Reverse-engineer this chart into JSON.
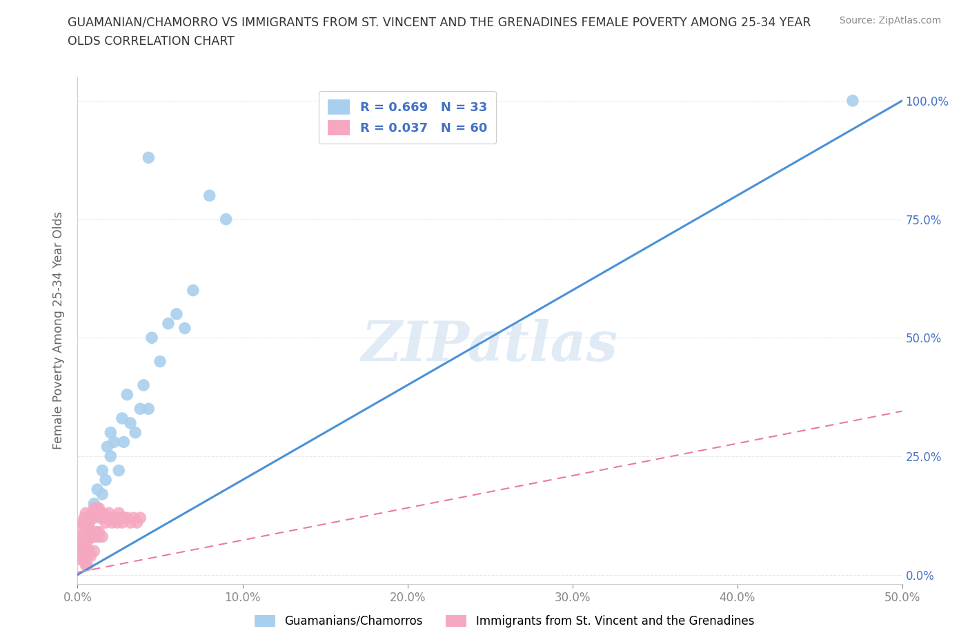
{
  "title_line1": "GUAMANIAN/CHAMORRO VS IMMIGRANTS FROM ST. VINCENT AND THE GRENADINES FEMALE POVERTY AMONG 25-34 YEAR",
  "title_line2": "OLDS CORRELATION CHART",
  "source": "Source: ZipAtlas.com",
  "ylabel": "Female Poverty Among 25-34 Year Olds",
  "watermark": "ZIPatlas",
  "legend_labels": [
    "Guamanians/Chamorros",
    "Immigrants from St. Vincent and the Grenadines"
  ],
  "legend_r_n": [
    {
      "R": "0.669",
      "N": "33"
    },
    {
      "R": "0.037",
      "N": "60"
    }
  ],
  "blue_color": "#A8CFEE",
  "pink_color": "#F5A8C0",
  "line_blue": "#4A90D9",
  "line_pink": "#E87AA0",
  "text_blue": "#4472C4",
  "xlim": [
    0.0,
    0.5
  ],
  "ylim": [
    -0.02,
    1.05
  ],
  "xticks": [
    0.0,
    0.1,
    0.2,
    0.3,
    0.4,
    0.5
  ],
  "yticks": [
    0.0,
    0.25,
    0.5,
    0.75,
    1.0
  ],
  "xtick_labels": [
    "0.0%",
    "10.0%",
    "20.0%",
    "30.0%",
    "40.0%",
    "50.0%"
  ],
  "ytick_labels": [
    "0.0%",
    "25.0%",
    "50.0%",
    "75.0%",
    "100.0%"
  ],
  "blue_x": [
    0.005,
    0.007,
    0.008,
    0.01,
    0.01,
    0.012,
    0.013,
    0.015,
    0.015,
    0.017,
    0.018,
    0.02,
    0.02,
    0.022,
    0.025,
    0.027,
    0.028,
    0.03,
    0.032,
    0.035,
    0.038,
    0.04,
    0.043,
    0.045,
    0.05,
    0.055,
    0.06,
    0.065,
    0.07,
    0.08,
    0.09,
    0.47,
    0.043
  ],
  "blue_y": [
    0.05,
    0.1,
    0.08,
    0.15,
    0.12,
    0.18,
    0.08,
    0.22,
    0.17,
    0.2,
    0.27,
    0.25,
    0.3,
    0.28,
    0.22,
    0.33,
    0.28,
    0.38,
    0.32,
    0.3,
    0.35,
    0.4,
    0.35,
    0.5,
    0.45,
    0.53,
    0.55,
    0.52,
    0.6,
    0.8,
    0.75,
    1.0,
    0.88
  ],
  "pink_x": [
    0.001,
    0.001,
    0.002,
    0.002,
    0.002,
    0.003,
    0.003,
    0.003,
    0.003,
    0.004,
    0.004,
    0.004,
    0.004,
    0.005,
    0.005,
    0.005,
    0.005,
    0.005,
    0.006,
    0.006,
    0.006,
    0.006,
    0.007,
    0.007,
    0.007,
    0.008,
    0.008,
    0.008,
    0.009,
    0.009,
    0.01,
    0.01,
    0.01,
    0.011,
    0.011,
    0.012,
    0.012,
    0.013,
    0.013,
    0.014,
    0.015,
    0.015,
    0.016,
    0.017,
    0.018,
    0.019,
    0.02,
    0.021,
    0.022,
    0.023,
    0.024,
    0.025,
    0.026,
    0.027,
    0.028,
    0.03,
    0.032,
    0.034,
    0.036,
    0.038
  ],
  "pink_y": [
    0.05,
    0.08,
    0.06,
    0.1,
    0.04,
    0.07,
    0.11,
    0.05,
    0.03,
    0.08,
    0.12,
    0.06,
    0.03,
    0.09,
    0.13,
    0.07,
    0.04,
    0.02,
    0.1,
    0.07,
    0.04,
    0.02,
    0.11,
    0.08,
    0.05,
    0.12,
    0.08,
    0.04,
    0.13,
    0.08,
    0.14,
    0.09,
    0.05,
    0.13,
    0.08,
    0.14,
    0.09,
    0.14,
    0.09,
    0.12,
    0.13,
    0.08,
    0.12,
    0.11,
    0.12,
    0.13,
    0.12,
    0.11,
    0.12,
    0.12,
    0.11,
    0.13,
    0.12,
    0.11,
    0.12,
    0.12,
    0.11,
    0.12,
    0.11,
    0.12
  ],
  "background_color": "#FFFFFF",
  "grid_color": "#E8E8E8"
}
